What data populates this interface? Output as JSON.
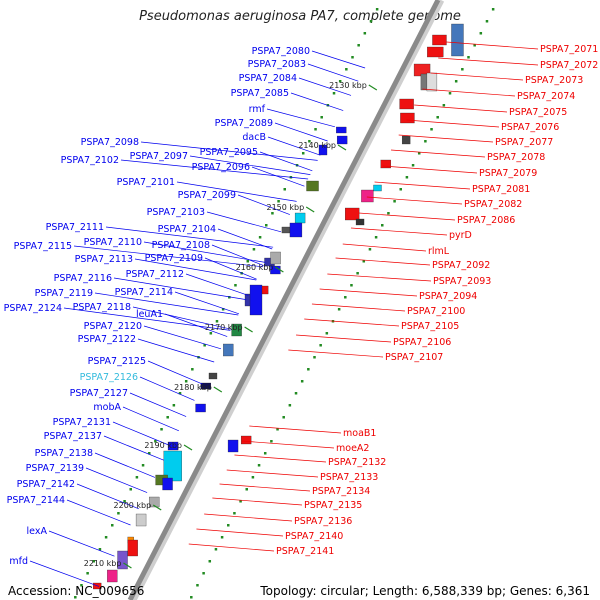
{
  "header": {
    "title": "Pseudomonas aeruginosa PA7, complete genome"
  },
  "footer": {
    "accession": "Accession: NC_009656",
    "summary": "Topology: circular; Length: 6,588,339 bp; Genes: 6,361"
  },
  "colors": {
    "forward_strand": "#0000ee",
    "reverse_strand": "#ee0000",
    "highlight_label": "#33bbdd",
    "backbone": "#8a8a8a",
    "tick_dots": "#228b22"
  },
  "scale_ticks": [
    "2130 kbp",
    "2140 kbp",
    "2150 kbp",
    "2160 kbp",
    "2170 kbp",
    "2180 kbp",
    "2190 kbp",
    "2200 kbp",
    "2210 kbp"
  ],
  "forward_genes": [
    "PSPA7_2080",
    "PSPA7_2083",
    "PSPA7_2084",
    "PSPA7_2085",
    "rmf",
    "PSPA7_2089",
    "dacB",
    "PSPA7_2098",
    "PSPA7_2097",
    "PSPA7_2095",
    "PSPA7_2102",
    "PSPA7_2096",
    "PSPA7_2101",
    "PSPA7_2099",
    "PSPA7_2103",
    "PSPA7_2104",
    "PSPA7_2111",
    "PSPA7_2110",
    "PSPA7_2108",
    "PSPA7_2115",
    "PSPA7_2113",
    "PSPA7_2109",
    "PSPA7_2112",
    "PSPA7_2116",
    "PSPA7_2114",
    "PSPA7_2119",
    "PSPA7_2118",
    "PSPA7_2124",
    "leuA1",
    "PSPA7_2120",
    "PSPA7_2122",
    "PSPA7_2125",
    "PSPA7_2126",
    "PSPA7_2127",
    "mobA",
    "PSPA7_2131",
    "PSPA7_2137",
    "PSPA7_2138",
    "PSPA7_2139",
    "PSPA7_2142",
    "PSPA7_2144",
    "lexA",
    "mfd"
  ],
  "reverse_genes": [
    "PSPA7_2071",
    "PSPA7_2072",
    "PSPA7_2073",
    "PSPA7_2074",
    "PSPA7_2075",
    "PSPA7_2076",
    "PSPA7_2077",
    "PSPA7_2078",
    "PSPA7_2079",
    "PSPA7_2081",
    "PSPA7_2082",
    "PSPA7_2086",
    "pyrD",
    "rlmL",
    "PSPA7_2092",
    "PSPA7_2093",
    "PSPA7_2094",
    "PSPA7_2100",
    "PSPA7_2105",
    "PSPA7_2106",
    "PSPA7_2107",
    "moaB1",
    "moeA2",
    "PSPA7_2132",
    "PSPA7_2133",
    "PSPA7_2134",
    "PSPA7_2135",
    "PSPA7_2136",
    "PSPA7_2140",
    "PSPA7_2141"
  ]
}
